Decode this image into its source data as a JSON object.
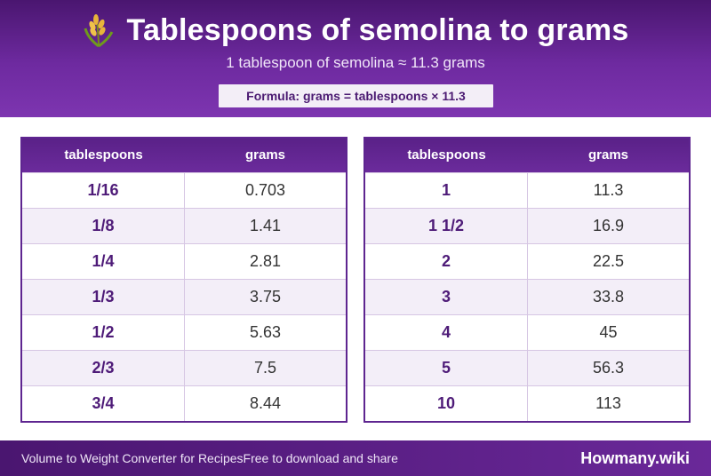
{
  "header": {
    "title": "Tablespoons of semolina to grams",
    "subtitle": "1 tablespoon of semolina ≈ 11.3 grams",
    "formula": "Formula: grams = tablespoons × 11.3",
    "icon": "wheat-icon"
  },
  "columns": {
    "col1": "tablespoons",
    "col2": "grams"
  },
  "left_table": [
    {
      "tbsp": "1/16",
      "grams": "0.703"
    },
    {
      "tbsp": "1/8",
      "grams": "1.41"
    },
    {
      "tbsp": "1/4",
      "grams": "2.81"
    },
    {
      "tbsp": "1/3",
      "grams": "3.75"
    },
    {
      "tbsp": "1/2",
      "grams": "5.63"
    },
    {
      "tbsp": "2/3",
      "grams": "7.5"
    },
    {
      "tbsp": "3/4",
      "grams": "8.44"
    }
  ],
  "right_table": [
    {
      "tbsp": "1",
      "grams": "11.3"
    },
    {
      "tbsp": "1 1/2",
      "grams": "16.9"
    },
    {
      "tbsp": "2",
      "grams": "22.5"
    },
    {
      "tbsp": "3",
      "grams": "33.8"
    },
    {
      "tbsp": "4",
      "grams": "45"
    },
    {
      "tbsp": "5",
      "grams": "56.3"
    },
    {
      "tbsp": "10",
      "grams": "113"
    }
  ],
  "footer": {
    "left_text_1": "Volume to Weight Converter for Recipes",
    "left_text_2": "Free to download and share",
    "brand": "Howmany.wiki"
  },
  "colors": {
    "primary": "#5e2590",
    "header_dark": "#4a1670",
    "row_alt": "#f3eef8"
  }
}
